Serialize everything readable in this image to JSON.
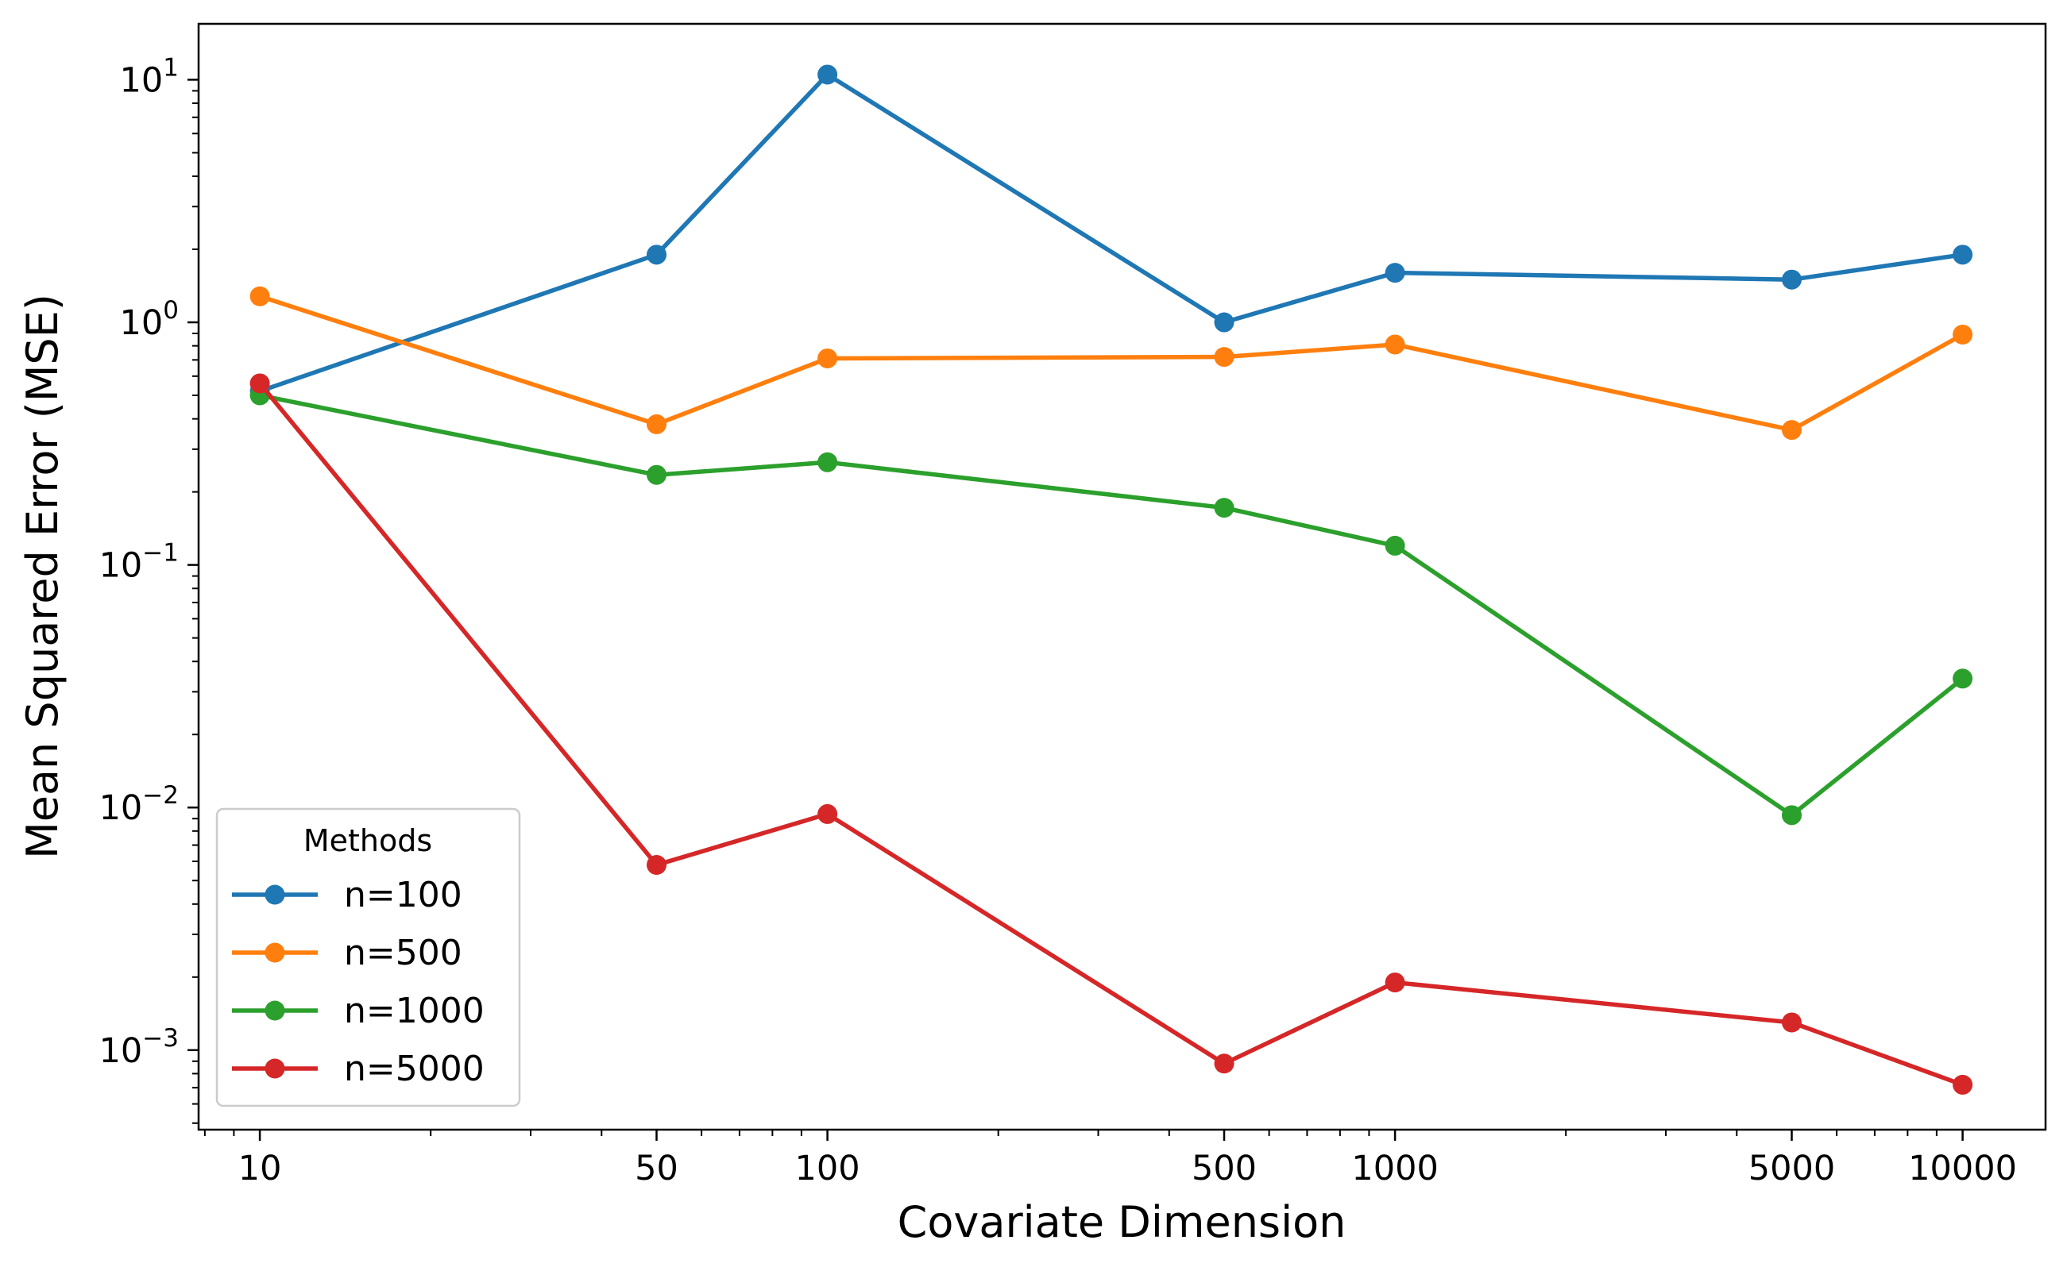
{
  "chart_data": {
    "type": "line",
    "xscale": "log",
    "yscale": "log",
    "xlabel": "Covariate Dimension",
    "ylabel": "Mean Squared Error (MSE)",
    "x": [
      10,
      50,
      100,
      500,
      1000,
      5000,
      10000
    ],
    "x_tick_labels": [
      "10",
      "50",
      "100",
      "500",
      "1000",
      "5000",
      "10000"
    ],
    "y_ticks": [
      {
        "value": 0.001,
        "base": "10",
        "exp": "−3"
      },
      {
        "value": 0.01,
        "base": "10",
        "exp": "−2"
      },
      {
        "value": 0.1,
        "base": "10",
        "exp": "−1"
      },
      {
        "value": 1,
        "base": "10",
        "exp": "0"
      },
      {
        "value": 10,
        "base": "10",
        "exp": "1"
      }
    ],
    "xlim": [
      7.8,
      14000
    ],
    "ylim": [
      0.00047,
      17
    ],
    "grid": false,
    "legend": {
      "title": "Methods",
      "placement": "lower-left"
    },
    "series": [
      {
        "name": "n=100",
        "color": "#1f77b4",
        "values": [
          0.52,
          1.9,
          10.5,
          1.0,
          1.6,
          1.5,
          1.9
        ]
      },
      {
        "name": "n=500",
        "color": "#ff7f0e",
        "values": [
          1.28,
          0.38,
          0.71,
          0.72,
          0.81,
          0.36,
          0.89
        ]
      },
      {
        "name": "n=1000",
        "color": "#2ca02c",
        "values": [
          0.5,
          0.235,
          0.265,
          0.172,
          0.12,
          0.0093,
          0.034
        ]
      },
      {
        "name": "n=5000",
        "color": "#d62728",
        "values": [
          0.56,
          0.0058,
          0.0094,
          0.00088,
          0.0019,
          0.0013,
          0.00072
        ]
      }
    ]
  }
}
